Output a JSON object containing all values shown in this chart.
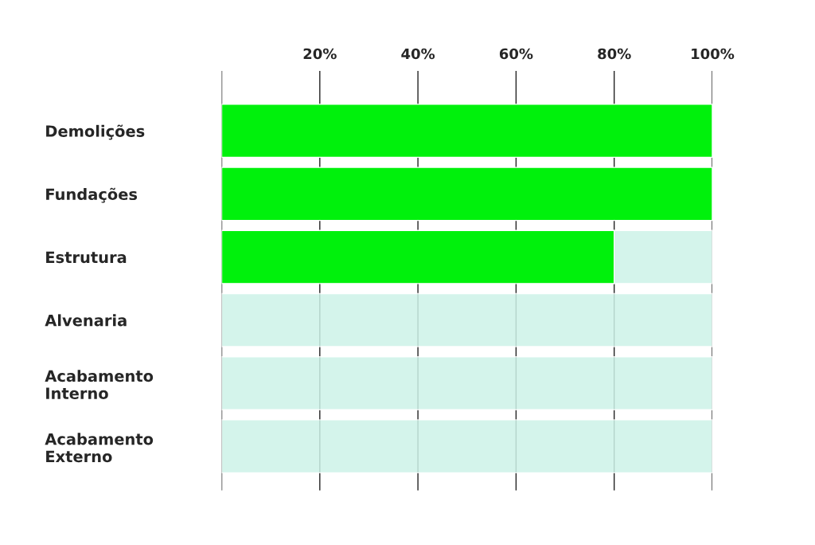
{
  "chart_data": {
    "type": "bar",
    "orientation": "horizontal",
    "stacked": true,
    "categories": [
      "Demolições",
      "Fundações",
      "Estrutura",
      "Alvenaria",
      "Acabamento\nInterno",
      "Acabamento\nExterno"
    ],
    "series": [
      {
        "color": "#00f10c",
        "values": [
          100,
          100,
          80,
          null,
          null,
          null
        ]
      },
      {
        "color": "#cdf3e8",
        "values": [
          null,
          null,
          20,
          100,
          100,
          100
        ]
      }
    ],
    "xlim": [
      0,
      100
    ],
    "xticks": [
      {
        "value": 20,
        "label": "20%"
      },
      {
        "value": 40,
        "label": "40%"
      },
      {
        "value": 60,
        "label": "60%"
      },
      {
        "value": 80,
        "label": "80%"
      },
      {
        "value": 100,
        "label": "100%"
      }
    ],
    "grid": "x",
    "legend": false
  }
}
